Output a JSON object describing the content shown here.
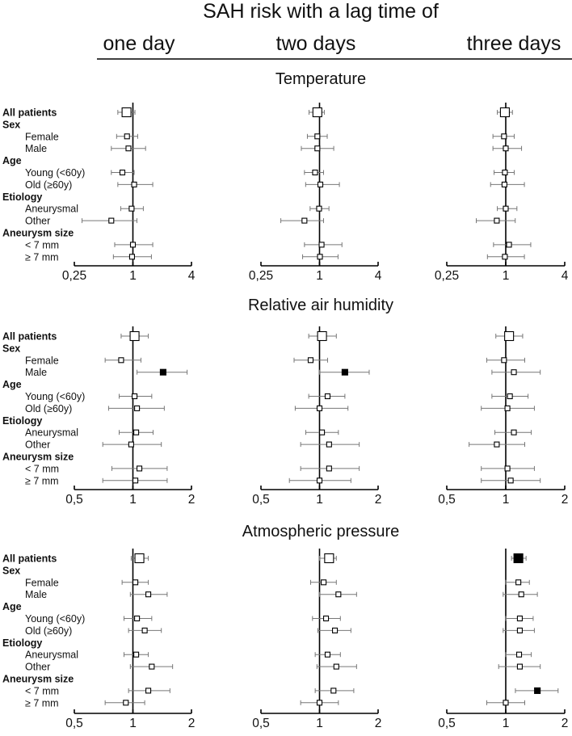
{
  "title": "SAH risk with a lag time of",
  "lags": [
    "one day",
    "two days",
    "three days"
  ],
  "rows": [
    {
      "label": "All patients",
      "header": true,
      "main": true
    },
    {
      "label": "Sex",
      "header": true,
      "group": true
    },
    {
      "label": "Female"
    },
    {
      "label": "Male"
    },
    {
      "label": "Age",
      "header": true,
      "group": true
    },
    {
      "label": "Young (<60y)"
    },
    {
      "label": "Old (≥60y)"
    },
    {
      "label": "Etiology",
      "header": true,
      "group": true
    },
    {
      "label": "Aneurysmal"
    },
    {
      "label": "Other"
    },
    {
      "label": "Aneurysm size",
      "header": true,
      "group": true
    },
    {
      "label": "< 7 mm"
    },
    {
      "label": "≥ 7 mm"
    }
  ],
  "chart_data": [
    {
      "type": "forest",
      "title": "Temperature",
      "scale": "log",
      "xlim": [
        0.25,
        4
      ],
      "ticks": [
        0.25,
        1,
        4
      ],
      "tick_labels": [
        "0,25",
        "1",
        "4"
      ],
      "panels": [
        {
          "lag": "one day",
          "points": [
            [
              0,
              0.86,
              0.7,
              1.05,
              0
            ],
            [
              2,
              0.87,
              0.68,
              1.12,
              0
            ],
            [
              3,
              0.9,
              0.6,
              1.35,
              0
            ],
            [
              5,
              0.78,
              0.6,
              1.03,
              0
            ],
            [
              6,
              1.03,
              0.7,
              1.6,
              0
            ],
            [
              8,
              0.97,
              0.75,
              1.28,
              0
            ],
            [
              9,
              0.6,
              0.3,
              1.1,
              0
            ],
            [
              11,
              1.0,
              0.65,
              1.6,
              0
            ],
            [
              12,
              0.98,
              0.63,
              1.55,
              0
            ]
          ]
        },
        {
          "lag": "two days",
          "points": [
            [
              0,
              0.95,
              0.78,
              1.12,
              0
            ],
            [
              2,
              0.95,
              0.75,
              1.2,
              0
            ],
            [
              3,
              0.95,
              0.65,
              1.4,
              0
            ],
            [
              5,
              0.9,
              0.7,
              1.1,
              0
            ],
            [
              6,
              1.02,
              0.72,
              1.6,
              0
            ],
            [
              8,
              0.99,
              0.8,
              1.25,
              0
            ],
            [
              9,
              0.7,
              0.4,
              1.1,
              0
            ],
            [
              11,
              1.05,
              0.7,
              1.7,
              0
            ],
            [
              12,
              1.01,
              0.67,
              1.55,
              0
            ]
          ]
        },
        {
          "lag": "three days",
          "points": [
            [
              0,
              0.98,
              0.82,
              1.17,
              0
            ],
            [
              2,
              0.96,
              0.74,
              1.22,
              0
            ],
            [
              3,
              1.0,
              0.74,
              1.45,
              0
            ],
            [
              5,
              0.98,
              0.76,
              1.22,
              0
            ],
            [
              6,
              0.97,
              0.7,
              1.55,
              0
            ],
            [
              8,
              1.0,
              0.82,
              1.3,
              0
            ],
            [
              9,
              0.81,
              0.5,
              1.25,
              0
            ],
            [
              11,
              1.08,
              0.75,
              1.8,
              0
            ],
            [
              12,
              0.98,
              0.65,
              1.55,
              0
            ]
          ]
        }
      ]
    },
    {
      "type": "forest",
      "title": "Relative air humidity",
      "scale": "log",
      "xlim": [
        0.5,
        2
      ],
      "ticks": [
        0.5,
        1,
        2
      ],
      "tick_labels": [
        "0,5",
        "1",
        "2"
      ],
      "panels": [
        {
          "lag": "one day",
          "points": [
            [
              0,
              1.02,
              0.87,
              1.2,
              0
            ],
            [
              2,
              0.87,
              0.72,
              1.1,
              0
            ],
            [
              3,
              1.43,
              1.05,
              1.9,
              1
            ],
            [
              5,
              1.02,
              0.85,
              1.25,
              0
            ],
            [
              6,
              1.05,
              0.75,
              1.45,
              0
            ],
            [
              8,
              1.04,
              0.85,
              1.27,
              0
            ],
            [
              9,
              0.98,
              0.7,
              1.4,
              0
            ],
            [
              11,
              1.08,
              0.78,
              1.5,
              0
            ],
            [
              12,
              1.03,
              0.7,
              1.5,
              0
            ]
          ]
        },
        {
          "lag": "two days",
          "points": [
            [
              0,
              1.03,
              0.88,
              1.22,
              0
            ],
            [
              2,
              0.9,
              0.74,
              1.1,
              0
            ],
            [
              3,
              1.35,
              1.0,
              1.8,
              1
            ],
            [
              5,
              1.1,
              0.88,
              1.35,
              0
            ],
            [
              6,
              1.0,
              0.75,
              1.4,
              0
            ],
            [
              8,
              1.03,
              0.85,
              1.25,
              0
            ],
            [
              9,
              1.12,
              0.8,
              1.6,
              0
            ],
            [
              11,
              1.12,
              0.8,
              1.6,
              0
            ],
            [
              12,
              1.0,
              0.7,
              1.45,
              0
            ]
          ]
        },
        {
          "lag": "three days",
          "points": [
            [
              0,
              1.04,
              0.89,
              1.22,
              0
            ],
            [
              2,
              0.98,
              0.8,
              1.25,
              0
            ],
            [
              3,
              1.1,
              0.85,
              1.5,
              0
            ],
            [
              5,
              1.05,
              0.85,
              1.3,
              0
            ],
            [
              6,
              1.02,
              0.75,
              1.4,
              0
            ],
            [
              8,
              1.1,
              0.88,
              1.35,
              0
            ],
            [
              9,
              0.9,
              0.65,
              1.25,
              0
            ],
            [
              11,
              1.02,
              0.75,
              1.4,
              0
            ],
            [
              12,
              1.06,
              0.75,
              1.5,
              0
            ]
          ]
        }
      ]
    },
    {
      "type": "forest",
      "title": "Atmospheric pressure",
      "scale": "log",
      "xlim": [
        0.5,
        2
      ],
      "ticks": [
        0.5,
        1,
        2
      ],
      "tick_labels": [
        "0,5",
        "1",
        "2"
      ],
      "panels": [
        {
          "lag": "one day",
          "points": [
            [
              0,
              1.08,
              0.98,
              1.2,
              0
            ],
            [
              2,
              1.03,
              0.88,
              1.2,
              0
            ],
            [
              3,
              1.2,
              0.97,
              1.5,
              0
            ],
            [
              5,
              1.05,
              0.9,
              1.25,
              0
            ],
            [
              6,
              1.15,
              0.95,
              1.4,
              0
            ],
            [
              8,
              1.04,
              0.9,
              1.2,
              0
            ],
            [
              9,
              1.25,
              0.97,
              1.6,
              0
            ],
            [
              11,
              1.2,
              0.95,
              1.55,
              0
            ],
            [
              12,
              0.92,
              0.72,
              1.15,
              0
            ]
          ]
        },
        {
          "lag": "two days",
          "points": [
            [
              0,
              1.12,
              1.0,
              1.22,
              0
            ],
            [
              2,
              1.05,
              0.9,
              1.22,
              0
            ],
            [
              3,
              1.25,
              1.0,
              1.55,
              0
            ],
            [
              5,
              1.08,
              0.92,
              1.28,
              0
            ],
            [
              6,
              1.2,
              0.98,
              1.45,
              0
            ],
            [
              8,
              1.1,
              0.95,
              1.28,
              0
            ],
            [
              9,
              1.22,
              0.97,
              1.55,
              0
            ],
            [
              11,
              1.18,
              0.95,
              1.5,
              0
            ],
            [
              12,
              1.0,
              0.8,
              1.25,
              0
            ]
          ]
        },
        {
          "lag": "three days",
          "points": [
            [
              0,
              1.16,
              1.07,
              1.27,
              1
            ],
            [
              2,
              1.16,
              1.0,
              1.32,
              0
            ],
            [
              3,
              1.2,
              0.97,
              1.45,
              0
            ],
            [
              5,
              1.18,
              1.0,
              1.38,
              0
            ],
            [
              6,
              1.18,
              0.97,
              1.4,
              0
            ],
            [
              8,
              1.17,
              1.0,
              1.35,
              0
            ],
            [
              9,
              1.18,
              0.92,
              1.5,
              0
            ],
            [
              11,
              1.45,
              1.12,
              1.85,
              1
            ],
            [
              12,
              1.0,
              0.8,
              1.25,
              0
            ]
          ]
        }
      ]
    }
  ]
}
